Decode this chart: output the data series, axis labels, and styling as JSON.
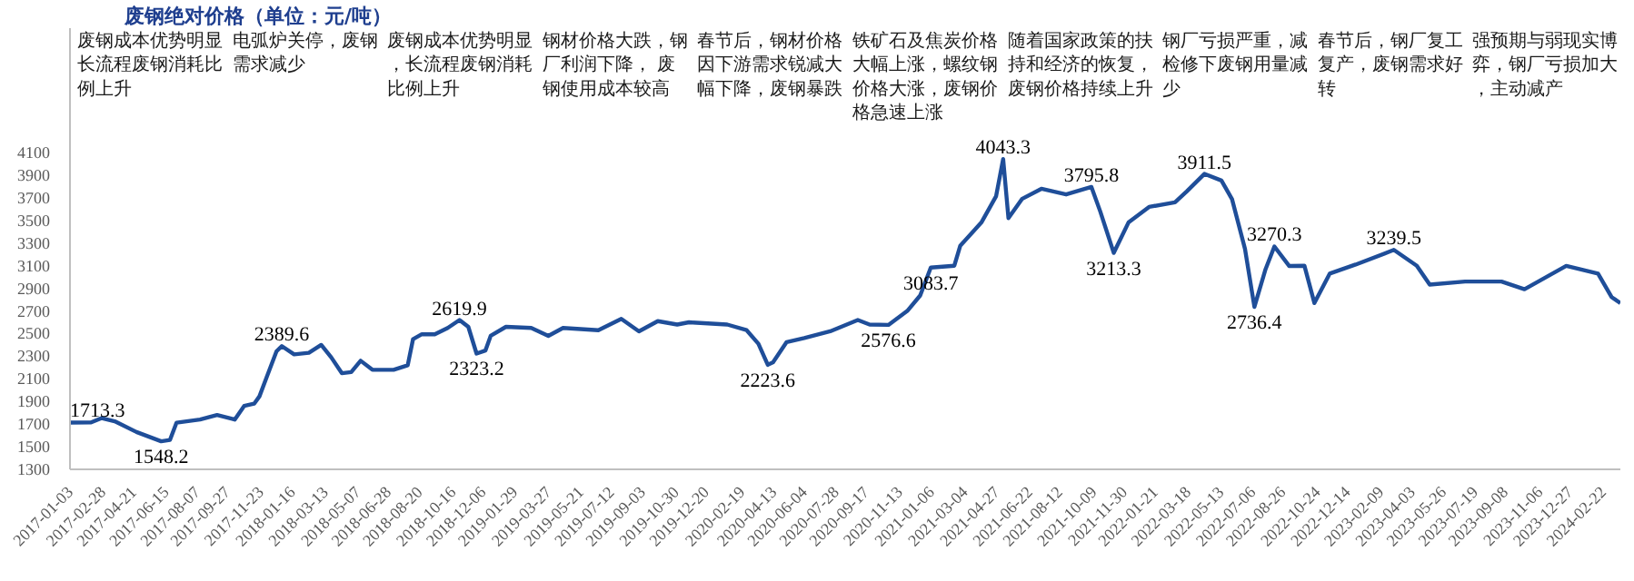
{
  "chart_data": {
    "type": "line",
    "title": "废钢绝对价格（单位：元/吨）",
    "xlim": [
      "2017-01-03",
      "2024-03-22"
    ],
    "ylim": [
      1300,
      5200
    ],
    "xticks": [
      "2017-01-03",
      "2017-02-28",
      "2017-04-21",
      "2017-06-15",
      "2017-08-07",
      "2017-09-27",
      "2017-11-23",
      "2018-01-16",
      "2018-03-13",
      "2018-05-07",
      "2018-06-28",
      "2018-08-20",
      "2018-10-16",
      "2018-12-06",
      "2019-01-29",
      "2019-03-27",
      "2019-05-21",
      "2019-07-12",
      "2019-09-03",
      "2019-10-30",
      "2019-12-20",
      "2020-02-19",
      "2020-04-13",
      "2020-06-04",
      "2020-07-28",
      "2020-09-17",
      "2020-11-13",
      "2021-01-06",
      "2021-03-04",
      "2021-04-27",
      "2021-06-22",
      "2021-08-12",
      "2021-10-09",
      "2021-11-30",
      "2022-01-21",
      "2022-03-18",
      "2022-05-13",
      "2022-07-06",
      "2022-08-26",
      "2022-10-24",
      "2022-12-14",
      "2023-02-09",
      "2023-04-03",
      "2023-05-26",
      "2023-07-19",
      "2023-09-08",
      "2023-11-06",
      "2023-12-27",
      "2024-02-22"
    ],
    "yticks": [
      1300,
      1500,
      1700,
      1900,
      2100,
      2300,
      2500,
      2700,
      2900,
      3100,
      3300,
      3500,
      3700,
      3900,
      4100
    ],
    "grid": false,
    "marker": "none",
    "line_style": "solid",
    "series": [
      {
        "color": "#1f4e99",
        "x": [
          "2017-01-03",
          "2017-02-08",
          "2017-02-26",
          "2017-03-20",
          "2017-04-26",
          "2017-06-07",
          "2017-06-22",
          "2017-07-03",
          "2017-08-12",
          "2017-09-10",
          "2017-10-10",
          "2017-10-26",
          "2017-11-12",
          "2017-11-21",
          "2017-12-03",
          "2017-12-20",
          "2017-12-29",
          "2018-01-19",
          "2018-02-13",
          "2018-03-06",
          "2018-03-23",
          "2018-04-10",
          "2018-04-26",
          "2018-05-12",
          "2018-06-01",
          "2018-07-07",
          "2018-07-31",
          "2018-08-09",
          "2018-08-24",
          "2018-09-15",
          "2018-10-07",
          "2018-10-27",
          "2018-11-11",
          "2018-11-25",
          "2018-12-10",
          "2018-12-19",
          "2019-01-14",
          "2019-02-26",
          "2019-03-27",
          "2019-04-21",
          "2019-06-20",
          "2019-07-29",
          "2019-08-28",
          "2019-09-29",
          "2019-11-01",
          "2019-11-21",
          "2020-01-25",
          "2020-02-27",
          "2020-03-18",
          "2020-04-03",
          "2020-04-12",
          "2020-05-05",
          "2020-06-04",
          "2020-07-18",
          "2020-09-03",
          "2020-09-23",
          "2020-10-25",
          "2020-11-26",
          "2020-12-18",
          "2021-01-05",
          "2021-02-14",
          "2021-02-24",
          "2021-04-01",
          "2021-04-26",
          "2021-05-08",
          "2021-05-17",
          "2021-06-09",
          "2021-07-12",
          "2021-08-23",
          "2021-10-05",
          "2021-10-20",
          "2021-11-12",
          "2021-12-07",
          "2022-01-11",
          "2022-02-24",
          "2022-03-16",
          "2022-04-15",
          "2022-05-14",
          "2022-06-01",
          "2022-06-23",
          "2022-07-09",
          "2022-07-28",
          "2022-08-12",
          "2022-09-06",
          "2022-10-02",
          "2022-10-19",
          "2022-11-14",
          "2022-12-28",
          "2023-03-03",
          "2023-04-11",
          "2023-05-03",
          "2023-07-02",
          "2023-09-02",
          "2023-10-11",
          "2023-12-21",
          "2024-02-13",
          "2024-03-07",
          "2024-03-22"
        ],
        "values": [
          1713.3,
          1715,
          1753,
          1725,
          1630,
          1548.2,
          1560,
          1712,
          1740,
          1780,
          1740,
          1860,
          1880,
          1945,
          2110,
          2343,
          2389.6,
          2316,
          2330,
          2400,
          2290,
          2150,
          2160,
          2260,
          2180,
          2180,
          2220,
          2450,
          2494,
          2494,
          2550,
          2619.9,
          2560,
          2323.2,
          2350,
          2480,
          2560,
          2550,
          2480,
          2550,
          2530,
          2630,
          2520,
          2610,
          2580,
          2600,
          2580,
          2530,
          2410,
          2223.6,
          2247,
          2425,
          2460,
          2520,
          2620,
          2580,
          2576.6,
          2700,
          2837,
          3083.7,
          3100,
          3276,
          3482,
          3715,
          4043.3,
          3520,
          3690,
          3780,
          3730,
          3795.8,
          3580,
          3213.3,
          3482,
          3620,
          3660,
          3757,
          3911.5,
          3853,
          3688,
          3249,
          2736.4,
          3070,
          3270.3,
          3098,
          3100,
          2770,
          3030,
          3110,
          3239.5,
          3100,
          2933,
          2960,
          2960,
          2892,
          3098,
          3030,
          2823,
          2770
        ]
      }
    ],
    "annotations": [
      {
        "text": "1713.3",
        "x": "2017-01-03",
        "y": 1713.3
      },
      {
        "text": "1548.2",
        "x": "2017-06-07",
        "y": 1548.2
      },
      {
        "text": "2389.6",
        "x": "2017-12-29",
        "y": 2389.6
      },
      {
        "text": "2619.9",
        "x": "2018-10-27",
        "y": 2619.9
      },
      {
        "text": "2323.2",
        "x": "2018-11-25",
        "y": 2323.2
      },
      {
        "text": "2223.6",
        "x": "2020-04-03",
        "y": 2223.6
      },
      {
        "text": "2576.6",
        "x": "2020-10-25",
        "y": 2576.6
      },
      {
        "text": "3083.7",
        "x": "2021-01-05",
        "y": 3083.7
      },
      {
        "text": "4043.3",
        "x": "2021-05-08",
        "y": 4043.3
      },
      {
        "text": "3795.8",
        "x": "2021-10-05",
        "y": 3795.8
      },
      {
        "text": "3213.3",
        "x": "2021-11-12",
        "y": 3213.3
      },
      {
        "text": "3911.5",
        "x": "2022-04-15",
        "y": 3911.5
      },
      {
        "text": "2736.4",
        "x": "2022-07-09",
        "y": 2736.4
      },
      {
        "text": "3270.3",
        "x": "2022-08-12",
        "y": 3270.3
      },
      {
        "text": "3239.5",
        "x": "2023-03-03",
        "y": 3239.5
      },
      "废钢成本优势明显长流程废钢消耗比例上升",
      "电弧炉关停，废钢需求减少",
      "废钢成本优势明显，长流程废钢消耗比例上升",
      "钢材价格大跌，钢厂利润下降， 废钢使用成本较高",
      "春节后，钢材价格因下游需求锐减大幅下降，废钢暴跌",
      "铁矿石及焦炭价格大幅上涨，螺纹钢价格大涨，废钢价格急速上涨",
      "随着国家政策的扶持和经济的恢复，废钢价格持续上升",
      "钢厂亏损严重，减检修下废钢用量减少",
      "春节后，钢厂复工复产，废钢需求好转",
      "强预期与弱现实博弈，钢厂亏损加大，主动减产"
    ]
  }
}
